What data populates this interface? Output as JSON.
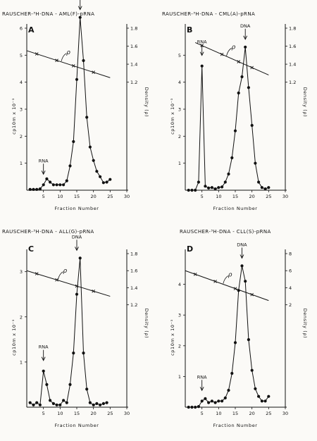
{
  "chart_data": [
    {
      "type": "line",
      "letter": "A",
      "title": "RAUSCHER-³H-DNA - AML(F)-pRNA",
      "xlabel": "Fraction  Number",
      "ylabel": "cp10m x 10⁻³",
      "y2label": "Density (ρ)",
      "xlim": [
        0,
        30
      ],
      "ylim": [
        0,
        6
      ],
      "y2lim": [
        0,
        1.8
      ],
      "xticks": [
        "5",
        "10",
        "15",
        "20",
        "25",
        "30"
      ],
      "yticks": [
        "1",
        "2",
        "3",
        "4",
        "5",
        "6"
      ],
      "y2ticks": [
        "1.2",
        "1.4",
        "1.6",
        "1.8"
      ],
      "series": [
        {
          "x": [
            1,
            2,
            3,
            4,
            5,
            6,
            7,
            8,
            9,
            10,
            11,
            12,
            13,
            14,
            15,
            16,
            17,
            18,
            19,
            20,
            21,
            22,
            23,
            24,
            25
          ],
          "y": [
            0.03,
            0.03,
            0.03,
            0.05,
            0.2,
            0.42,
            0.3,
            0.2,
            0.2,
            0.2,
            0.2,
            0.35,
            0.9,
            1.8,
            4.1,
            6.4,
            4.8,
            2.7,
            1.6,
            1.1,
            0.7,
            0.5,
            0.28,
            0.3,
            0.4
          ]
        }
      ],
      "density_line": {
        "x": [
          0,
          25
        ],
        "y": [
          1.55,
          1.25
        ],
        "markers_x": [
          3,
          9,
          14,
          20
        ]
      },
      "annotations": {
        "dna_label": "DNA",
        "rna_label": "RNA",
        "rho_label": "ρ",
        "dna_x": 16,
        "rna_x": 5
      }
    },
    {
      "type": "line",
      "letter": "B",
      "title": "RAUSCHER-³H-DNA - CML(A)-pRNA",
      "xlabel": "Fraction  Number",
      "ylabel": "cp10m x 10⁻³",
      "y2label": "Density (ρ)",
      "xlim": [
        0,
        30
      ],
      "ylim": [
        0,
        6
      ],
      "y2lim": [
        0,
        1.8
      ],
      "xticks": [
        "5",
        "10",
        "15",
        "20",
        "25",
        "30"
      ],
      "yticks": [
        "1",
        "2",
        "3",
        "4",
        "5"
      ],
      "y2ticks": [
        "1.2",
        "1.4",
        "1.6",
        "1.8"
      ],
      "series": [
        {
          "x": [
            1,
            2,
            3,
            4,
            5,
            6,
            7,
            8,
            9,
            10,
            11,
            12,
            13,
            14,
            15,
            16,
            17,
            18,
            19,
            20,
            21,
            22,
            23,
            24,
            25
          ],
          "y": [
            0.0,
            0.0,
            0.0,
            0.3,
            4.6,
            0.15,
            0.08,
            0.1,
            0.05,
            0.1,
            0.12,
            0.3,
            0.6,
            1.2,
            2.2,
            3.6,
            4.2,
            5.3,
            3.8,
            2.4,
            1.0,
            0.3,
            0.1,
            0.05,
            0.1
          ]
        }
      ],
      "density_line": {
        "x": [
          3,
          25
        ],
        "y": [
          1.64,
          1.28
        ],
        "markers_x": [
          5,
          11,
          16,
          20
        ]
      },
      "annotations": {
        "dna_label": "DNA",
        "rna_label": "RNA",
        "rho_label": "ρ",
        "dna_x": 18,
        "rna_x": 5
      }
    },
    {
      "type": "line",
      "letter": "C",
      "title": "RAUSCHER-³H-DNA - ALL(G)-pRNA",
      "xlabel": "Fraction  Number",
      "ylabel": "cp10m x 10⁻³",
      "y2label": "Density (ρ)",
      "xlim": [
        0,
        30
      ],
      "ylim": [
        0,
        3.4
      ],
      "y2lim": [
        0,
        1.8
      ],
      "xticks": [
        "5",
        "10",
        "15",
        "20",
        "25",
        "30"
      ],
      "yticks": [
        "1",
        "2",
        "3"
      ],
      "y2ticks": [
        "1.2",
        "1.4",
        "1.6",
        "1.8"
      ],
      "series": [
        {
          "x": [
            1,
            2,
            3,
            4,
            5,
            6,
            7,
            8,
            9,
            10,
            11,
            12,
            13,
            14,
            15,
            16,
            17,
            18,
            19,
            20,
            21,
            22,
            23,
            24
          ],
          "y": [
            0.1,
            0.05,
            0.1,
            0.05,
            0.8,
            0.5,
            0.15,
            0.08,
            0.05,
            0.05,
            0.15,
            0.1,
            0.5,
            1.2,
            2.5,
            3.3,
            1.2,
            0.4,
            0.1,
            0.05,
            0.08,
            0.05,
            0.08,
            0.1
          ]
        }
      ],
      "density_line": {
        "x": [
          0,
          25
        ],
        "y": [
          1.6,
          1.3
        ],
        "markers_x": [
          3,
          9,
          15,
          20
        ]
      },
      "annotations": {
        "dna_label": "DNA",
        "rna_label": "RNA",
        "rho_label": "ρ",
        "dna_x": 15,
        "rna_x": 5
      }
    },
    {
      "type": "line",
      "letter": "D",
      "title": "RAUSCHER-³H-DNA - CLL(S)-pRNA",
      "xlabel": "Fraction  Number",
      "ylabel": "cp10m x 10⁻³",
      "y2label": "Density (ρ)",
      "xlim": [
        0,
        30
      ],
      "ylim": [
        0,
        5
      ],
      "y2lim": [
        0,
        1.8
      ],
      "xticks": [
        "5",
        "10",
        "15",
        "20",
        "25",
        "30"
      ],
      "yticks": [
        "1",
        "2",
        "3",
        "4"
      ],
      "y2ticks": [
        "2",
        "4",
        "6",
        "8"
      ],
      "series": [
        {
          "x": [
            1,
            2,
            3,
            4,
            5,
            6,
            7,
            8,
            9,
            10,
            11,
            12,
            13,
            14,
            15,
            16,
            17,
            18,
            19,
            20,
            21,
            22,
            23,
            24,
            25
          ],
          "y": [
            0.0,
            0.0,
            0.0,
            0.02,
            0.2,
            0.28,
            0.15,
            0.2,
            0.15,
            0.2,
            0.2,
            0.3,
            0.55,
            1.1,
            2.1,
            3.8,
            4.6,
            4.1,
            2.2,
            1.2,
            0.6,
            0.35,
            0.2,
            0.2,
            0.35
          ]
        }
      ],
      "density_line": {
        "x": [
          0,
          25
        ],
        "y": [
          1.6,
          1.25
        ],
        "markers_x": [
          3,
          9,
          15,
          20
        ]
      },
      "annotations": {
        "dna_label": "DNA",
        "rna_label": "RNA",
        "rho_label": "ρ",
        "dna_x": 17,
        "rna_x": 5
      }
    }
  ]
}
